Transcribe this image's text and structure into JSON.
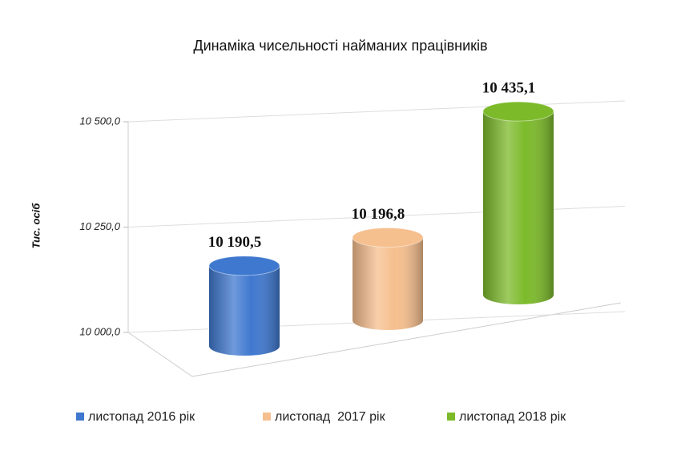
{
  "chart_data": {
    "type": "cylinder",
    "title": "Динаміка чисельності найманих працівників",
    "y_label": "Тис. осіб",
    "ylim": [
      10000,
      10500
    ],
    "yticks": [
      {
        "value": 10000,
        "label": "10 000,0"
      },
      {
        "value": 10250,
        "label": "10 250,0"
      },
      {
        "value": 10500,
        "label": "10 500,0"
      }
    ],
    "grid": true,
    "legend": "bottom",
    "series": [
      {
        "name": "листопад 2016 рік",
        "color": "#3f78cf",
        "values": [
          10190.5
        ],
        "value_labels": [
          "10 190,5"
        ]
      },
      {
        "name": "листопад  2017 рік",
        "color": "#f6bf8e",
        "values": [
          10196.8
        ],
        "value_labels": [
          "10 196,8"
        ]
      },
      {
        "name": "листопад 2018 рік",
        "color": "#7cba2a",
        "values": [
          10435.1
        ],
        "value_labels": [
          "10 435,1"
        ]
      }
    ]
  }
}
